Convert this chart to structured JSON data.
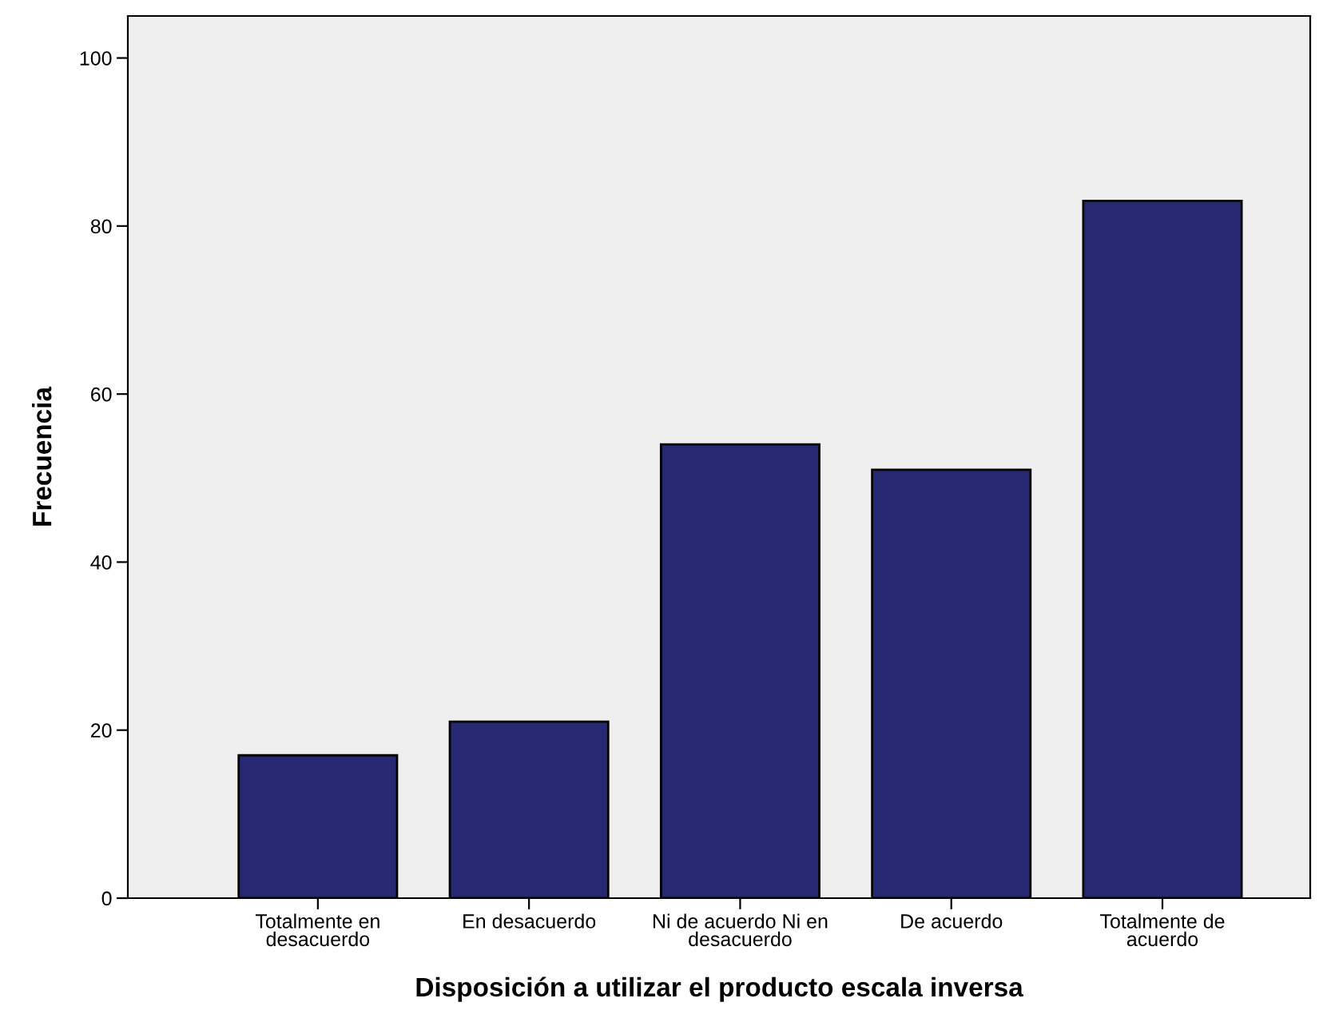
{
  "chart_data": {
    "type": "bar",
    "xlabel": "Disposición a utilizar el producto escala inversa",
    "ylabel": "Frecuencia",
    "categories": [
      "Totalmente en\ndesacuerdo",
      "En desacuerdo",
      "Ni de acuerdo Ni en\ndesacuerdo",
      "De acuerdo",
      "Totalmente de\nacuerdo"
    ],
    "values": [
      17,
      21,
      54,
      51,
      83
    ],
    "color": "#272872",
    "ylim": [
      0,
      105
    ],
    "yticks": [
      0,
      20,
      40,
      60,
      80,
      100
    ],
    "grid": false
  }
}
